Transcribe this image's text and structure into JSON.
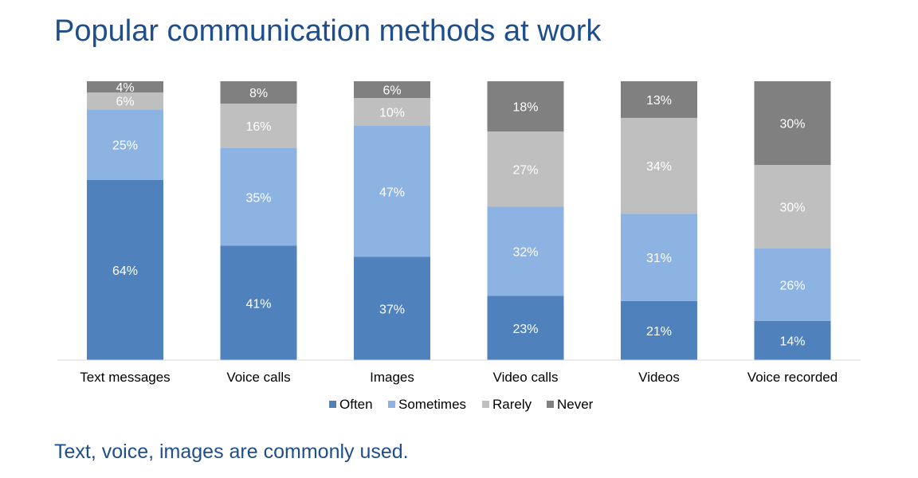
{
  "title": "Popular communication methods at work",
  "footer": "Text, voice, images are commonly used.",
  "chart_data": {
    "type": "bar",
    "stacked": true,
    "normalized_100": true,
    "categories": [
      "Text messages",
      "Voice calls",
      "Images",
      "Video calls",
      "Videos",
      "Voice recorded"
    ],
    "series": [
      {
        "name": "Often",
        "color": "#4f81bd",
        "values": [
          64,
          41,
          37,
          23,
          21,
          14
        ]
      },
      {
        "name": "Sometimes",
        "color": "#8db3e2",
        "values": [
          25,
          35,
          47,
          32,
          31,
          26
        ]
      },
      {
        "name": "Rarely",
        "color": "#bfbfbf",
        "values": [
          6,
          16,
          10,
          27,
          34,
          30
        ]
      },
      {
        "name": "Never",
        "color": "#808080",
        "values": [
          4,
          8,
          6,
          18,
          13,
          30
        ]
      }
    ],
    "value_suffix": "%",
    "legend_position": "bottom",
    "grid": false
  }
}
